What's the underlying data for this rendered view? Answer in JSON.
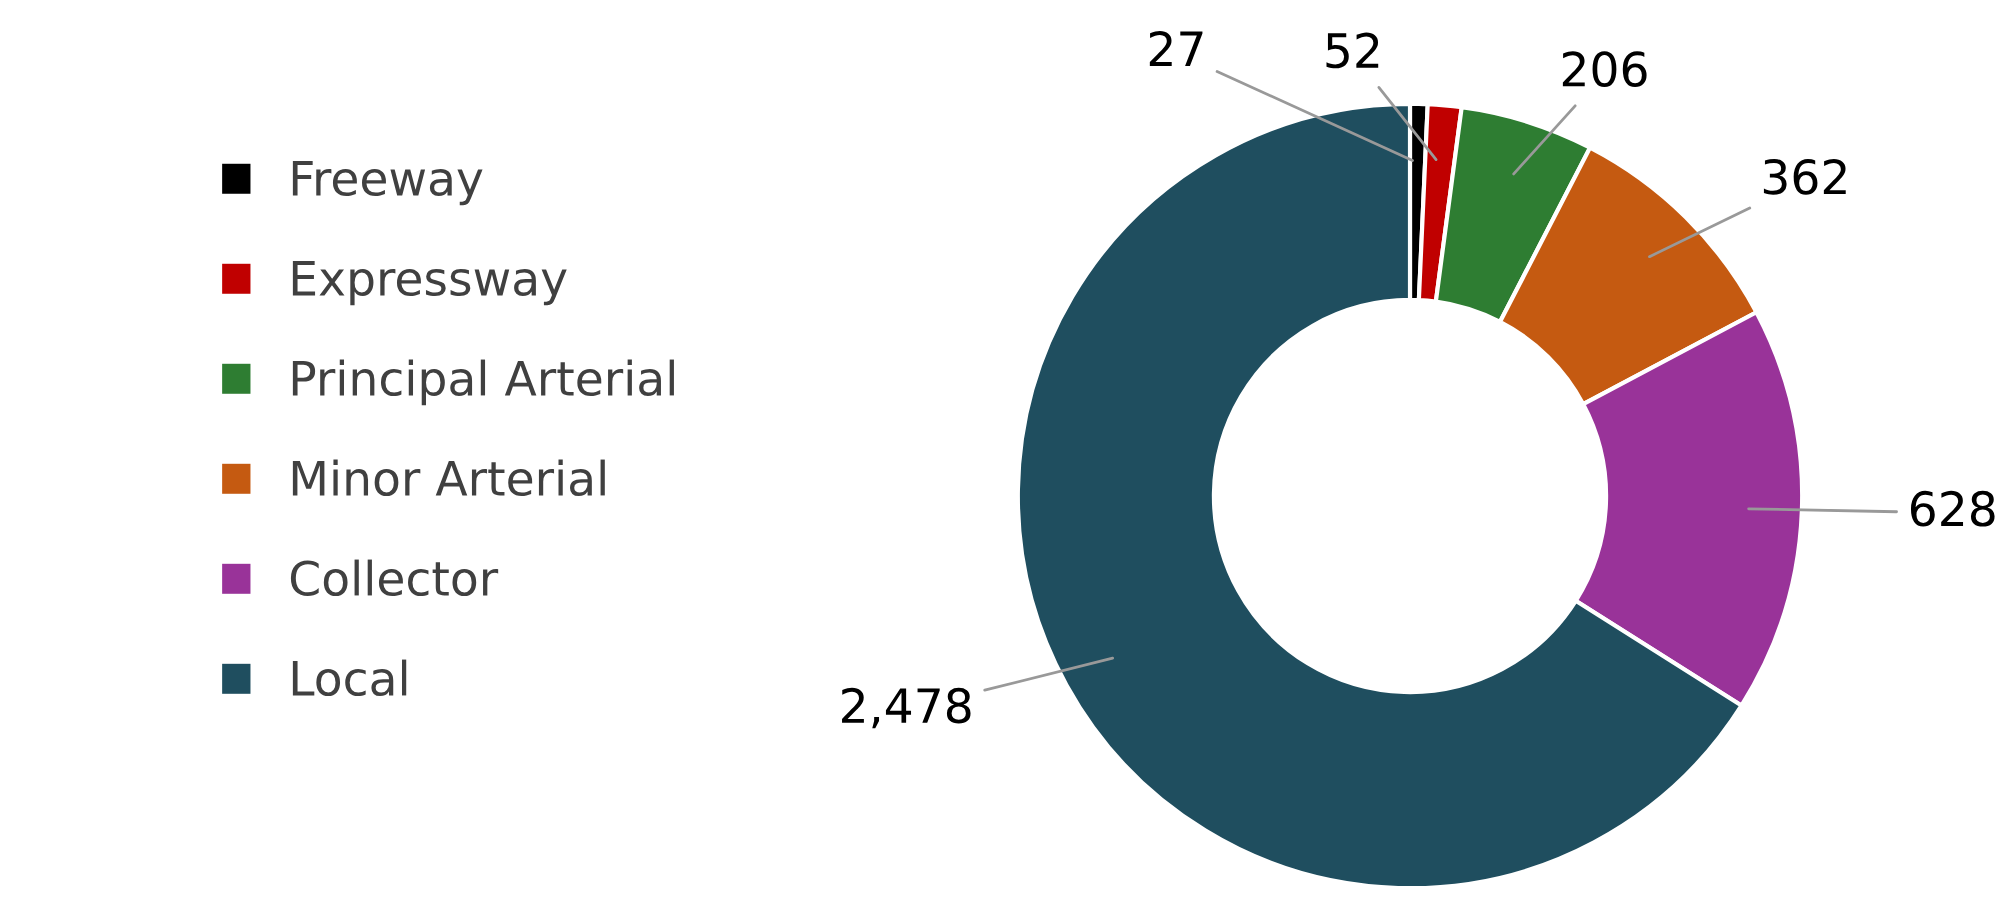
{
  "chart_data": {
    "type": "donut",
    "categories": [
      "Freeway",
      "Expressway",
      "Principal Arterial",
      "Minor Arterial",
      "Collector",
      "Local"
    ],
    "values": [
      27,
      52,
      206,
      362,
      628,
      2478
    ],
    "colors": [
      "#000000",
      "#c00000",
      "#2e7d32",
      "#c55a11",
      "#993399",
      "#1f4e5f"
    ],
    "value_labels": [
      "27",
      "52",
      "206",
      "362",
      "628",
      "2,478"
    ],
    "legend": "left"
  }
}
